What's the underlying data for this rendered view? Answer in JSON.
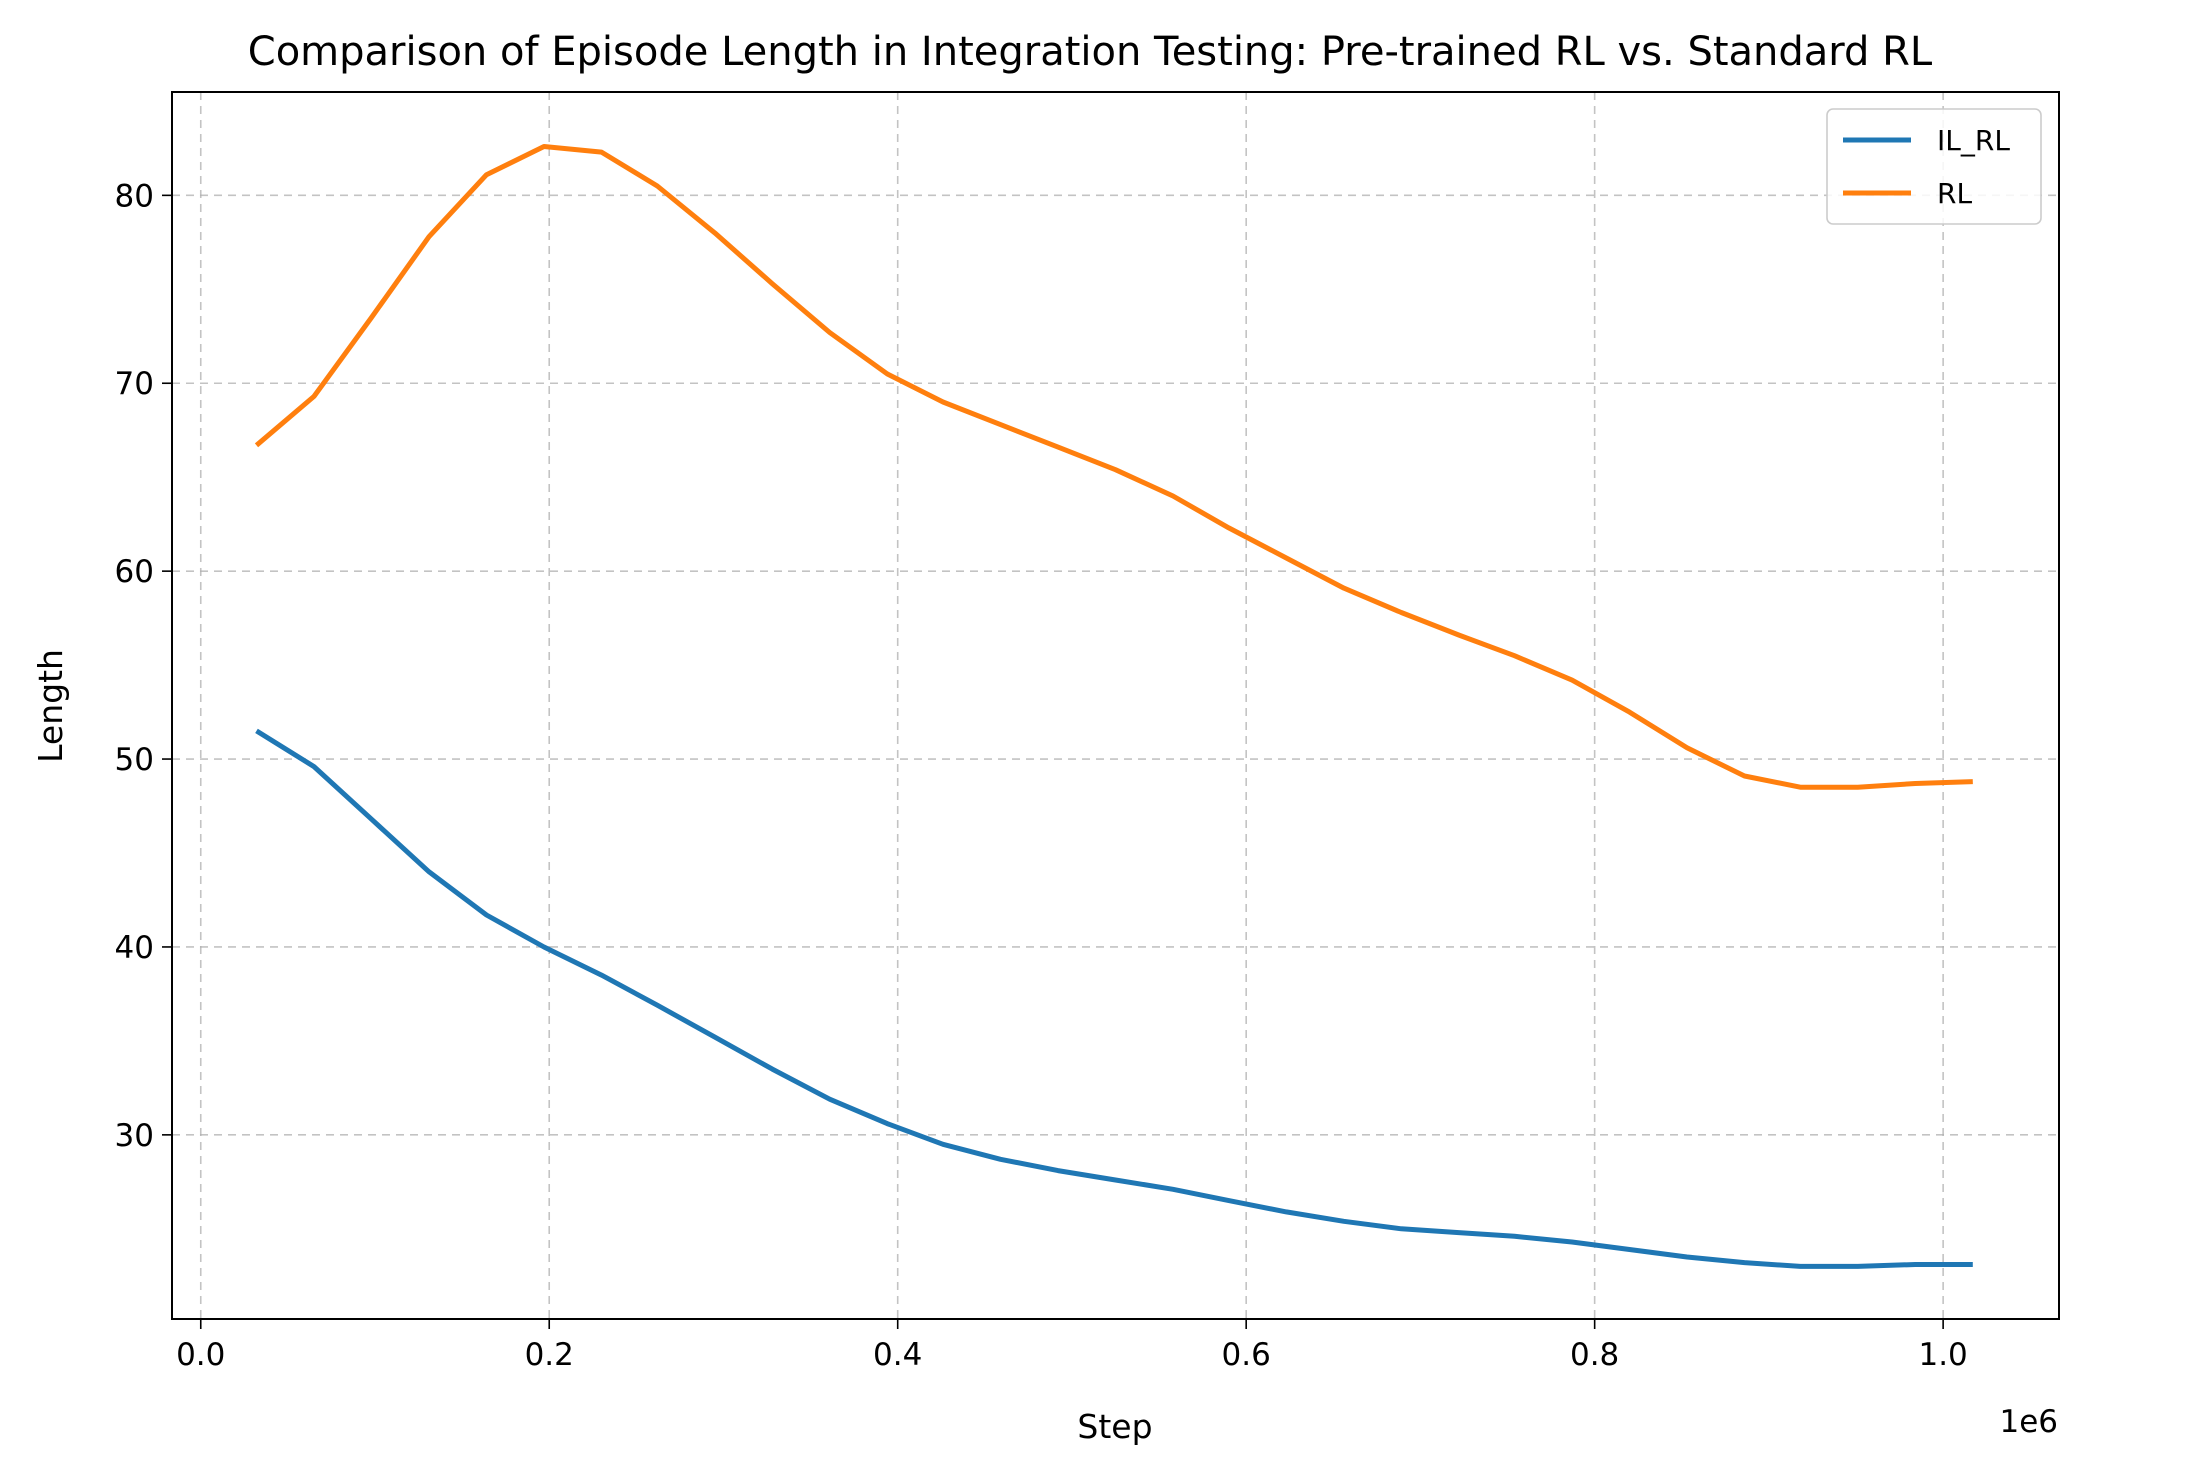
{
  "chart_data": {
    "type": "line",
    "title": "Comparison of Episode Length in Integration Testing: Pre-trained RL vs. Standard RL",
    "xlabel": "Step",
    "ylabel": "Length",
    "x_offset_text": "1e6",
    "xlim": [
      -0.0165,
      1.0665
    ],
    "ylim": [
      20.2,
      85.5
    ],
    "xticks": [
      0.0,
      0.2,
      0.4,
      0.6,
      0.8,
      1.0
    ],
    "xtick_labels": [
      "0.0",
      "0.2",
      "0.4",
      "0.6",
      "0.8",
      "1.0"
    ],
    "yticks": [
      30,
      40,
      50,
      60,
      70,
      80
    ],
    "ytick_labels": [
      "30",
      "40",
      "50",
      "60",
      "70",
      "80"
    ],
    "grid": true,
    "legend_position": "top-right",
    "x": [
      0.032,
      0.065,
      0.098,
      0.131,
      0.164,
      0.197,
      0.23,
      0.262,
      0.295,
      0.328,
      0.361,
      0.394,
      0.426,
      0.459,
      0.492,
      0.525,
      0.558,
      0.59,
      0.623,
      0.656,
      0.689,
      0.722,
      0.754,
      0.787,
      0.82,
      0.853,
      0.886,
      0.918,
      0.951,
      0.984,
      1.017
    ],
    "series": [
      {
        "name": "IL_RL",
        "color": "#1f77b4",
        "values": [
          51.5,
          49.6,
          46.8,
          44.0,
          41.7,
          40.0,
          38.5,
          36.9,
          35.2,
          33.5,
          31.9,
          30.6,
          29.5,
          28.7,
          28.1,
          27.6,
          27.1,
          26.5,
          25.9,
          25.4,
          25.0,
          24.8,
          24.6,
          24.3,
          23.9,
          23.5,
          23.2,
          23.0,
          23.0,
          23.1,
          23.1
        ]
      },
      {
        "name": "RL",
        "color": "#ff7f0e",
        "values": [
          66.7,
          69.3,
          73.5,
          77.8,
          81.1,
          82.6,
          82.3,
          80.5,
          78.0,
          75.3,
          72.7,
          70.5,
          69.0,
          67.8,
          66.6,
          65.4,
          64.0,
          62.3,
          60.7,
          59.1,
          57.8,
          56.6,
          55.5,
          54.2,
          52.5,
          50.6,
          49.1,
          48.5,
          48.5,
          48.7,
          48.8
        ]
      }
    ]
  }
}
